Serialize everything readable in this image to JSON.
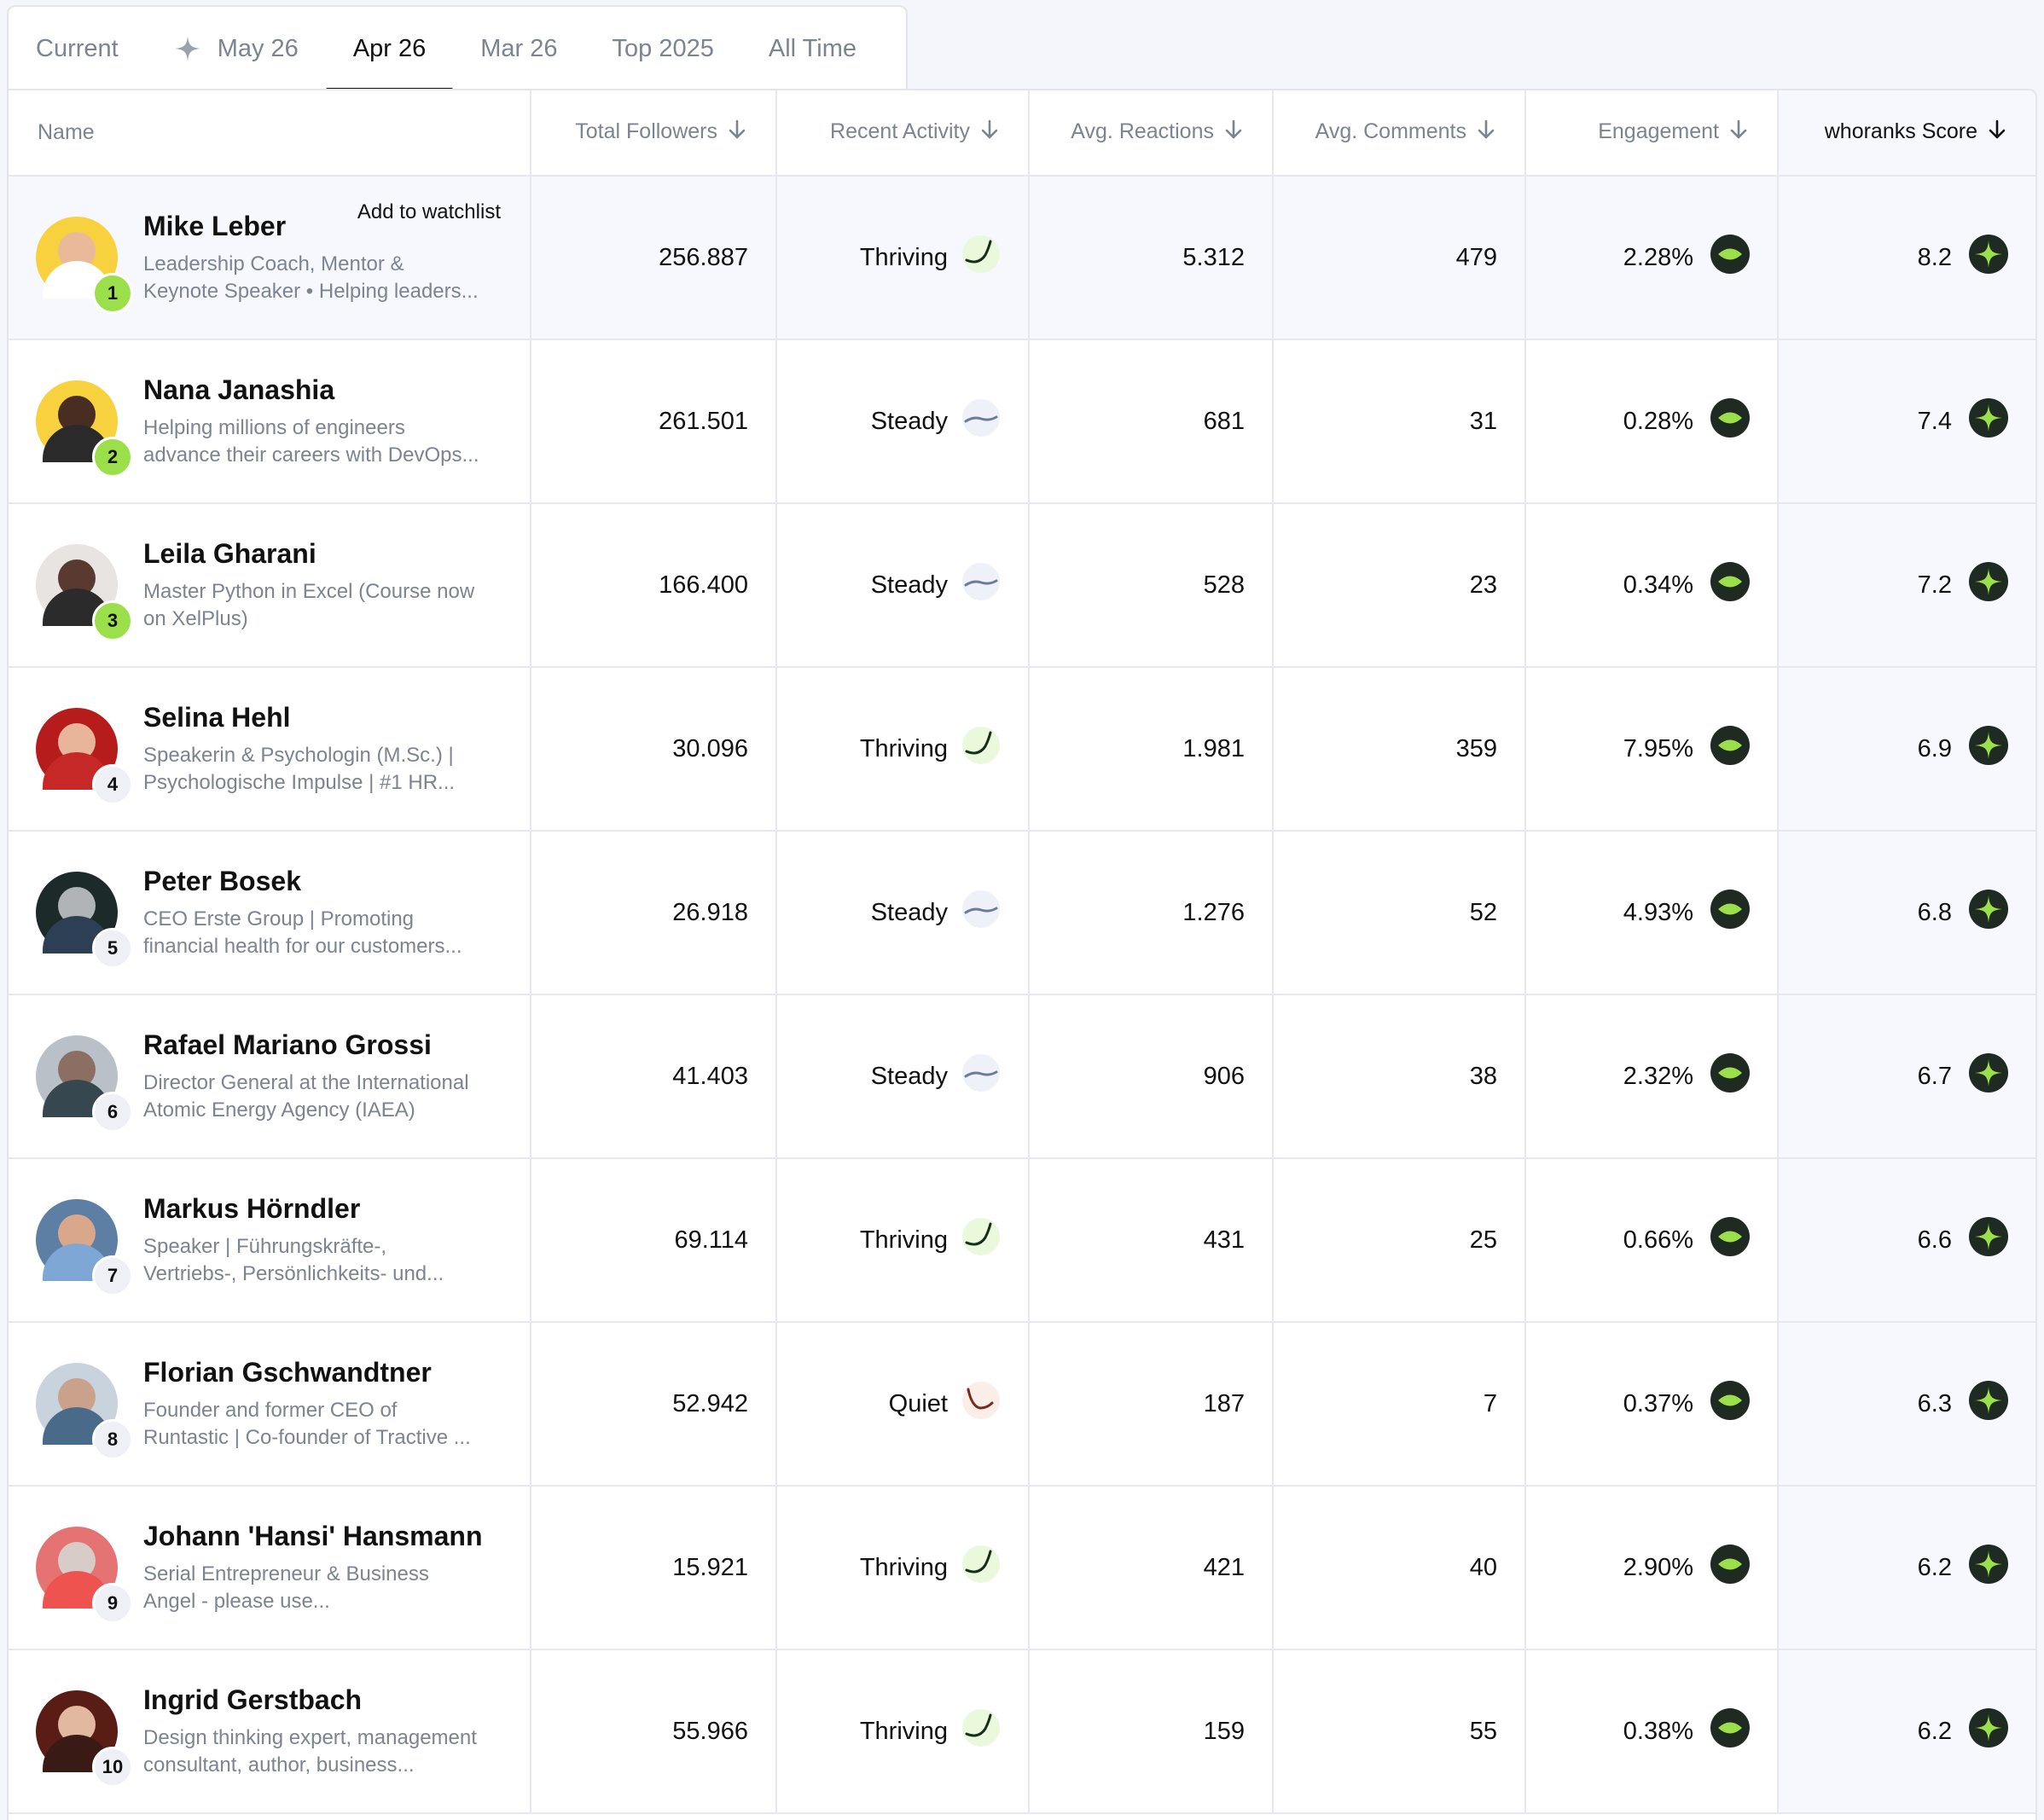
{
  "tabs": [
    {
      "label": "Current"
    },
    {
      "label": "May 26"
    },
    {
      "label": "Apr 26"
    },
    {
      "label": "Mar 26"
    },
    {
      "label": "Top 2025"
    },
    {
      "label": "All Time"
    }
  ],
  "active_tab": "Apr 26",
  "columns": {
    "name": "Name",
    "followers": "Total Followers",
    "activity": "Recent Activity",
    "reactions": "Avg. Reactions",
    "comments": "Avg. Comments",
    "engagement": "Engagement",
    "score": "whoranks Score"
  },
  "watchlist_label": "Add to watchlist",
  "colors": {
    "accent_green": "#9be04a",
    "badge_dark": "#1f2b22",
    "thriving_stroke": "#14301c",
    "steady_stroke": "#6e7b97",
    "quiet_stroke": "#7a2a1d"
  },
  "rows": [
    {
      "rank": "1",
      "name": "Mike Leber",
      "desc1": "Leadership Coach, Mentor &",
      "desc2": "Keynote Speaker • Helping leaders...",
      "followers": "256.887",
      "activity": "Thriving",
      "reactions": "5.312",
      "comments": "479",
      "engagement": "2.28%",
      "score": "8.2"
    },
    {
      "rank": "2",
      "name": "Nana Janashia",
      "desc1": "Helping millions of engineers",
      "desc2": "advance their careers with DevOps...",
      "followers": "261.501",
      "activity": "Steady",
      "reactions": "681",
      "comments": "31",
      "engagement": "0.28%",
      "score": "7.4"
    },
    {
      "rank": "3",
      "name": "Leila Gharani",
      "desc1": "Master Python in Excel (Course now",
      "desc2": "on XelPlus)",
      "followers": "166.400",
      "activity": "Steady",
      "reactions": "528",
      "comments": "23",
      "engagement": "0.34%",
      "score": "7.2"
    },
    {
      "rank": "4",
      "name": "Selina Hehl",
      "desc1": "Speakerin & Psychologin (M.Sc.) |",
      "desc2": "Psychologische Impulse | #1 HR...",
      "followers": "30.096",
      "activity": "Thriving",
      "reactions": "1.981",
      "comments": "359",
      "engagement": "7.95%",
      "score": "6.9"
    },
    {
      "rank": "5",
      "name": "Peter Bosek",
      "desc1": "CEO Erste Group | Promoting",
      "desc2": "financial health for our customers...",
      "followers": "26.918",
      "activity": "Steady",
      "reactions": "1.276",
      "comments": "52",
      "engagement": "4.93%",
      "score": "6.8"
    },
    {
      "rank": "6",
      "name": "Rafael Mariano Grossi",
      "desc1": "Director General at the International",
      "desc2": "Atomic Energy Agency (IAEA)",
      "followers": "41.403",
      "activity": "Steady",
      "reactions": "906",
      "comments": "38",
      "engagement": "2.32%",
      "score": "6.7"
    },
    {
      "rank": "7",
      "name": "Markus Hörndler",
      "desc1": "Speaker | Führungskräfte-,",
      "desc2": "Vertriebs-, Persönlichkeits- und...",
      "followers": "69.114",
      "activity": "Thriving",
      "reactions": "431",
      "comments": "25",
      "engagement": "0.66%",
      "score": "6.6"
    },
    {
      "rank": "8",
      "name": "Florian Gschwandtner",
      "desc1": "Founder and former CEO of",
      "desc2": "Runtastic | Co-founder of Tractive ...",
      "followers": "52.942",
      "activity": "Quiet",
      "reactions": "187",
      "comments": "7",
      "engagement": "0.37%",
      "score": "6.3"
    },
    {
      "rank": "9",
      "name": "Johann 'Hansi' Hansmann",
      "desc1": "Serial Entrepreneur & Business",
      "desc2": "Angel - please use...",
      "followers": "15.921",
      "activity": "Thriving",
      "reactions": "421",
      "comments": "40",
      "engagement": "2.90%",
      "score": "6.2"
    },
    {
      "rank": "10",
      "name": "Ingrid Gerstbach",
      "desc1": "Design thinking expert, management",
      "desc2": "consultant, author, business...",
      "followers": "55.966",
      "activity": "Thriving",
      "reactions": "159",
      "comments": "55",
      "engagement": "0.38%",
      "score": "6.2"
    }
  ]
}
